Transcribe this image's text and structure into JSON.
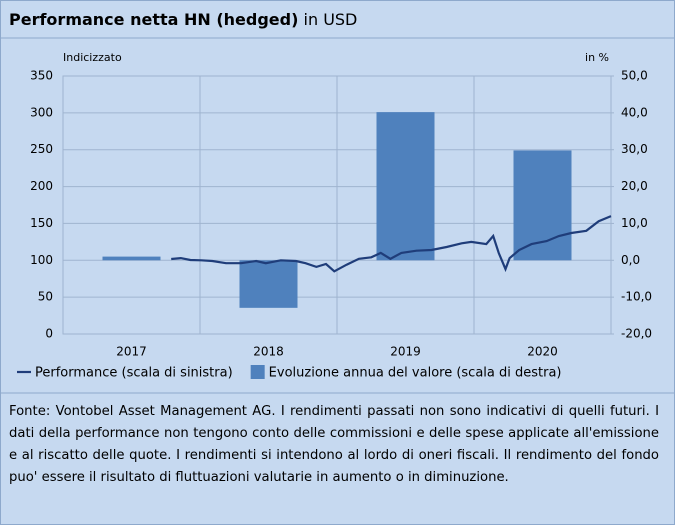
{
  "chart_data": {
    "type": "bar",
    "title": "Performance netta HN (hedged)",
    "subtitle": "in USD",
    "y_label": "Indicizzato",
    "y2_label": "in %",
    "categories": [
      "2017",
      "2018",
      "2019",
      "2020"
    ],
    "xlim": [
      2017,
      2021
    ],
    "ylim": [
      0,
      350
    ],
    "yticks": [
      0,
      50,
      100,
      150,
      200,
      250,
      300,
      350
    ],
    "y2lim": [
      -20,
      50
    ],
    "y2ticks": [
      {
        "value": -20,
        "label": "-20,0"
      },
      {
        "value": -10,
        "label": "-10,0"
      },
      {
        "value": 0,
        "label": "0,0"
      },
      {
        "value": 10,
        "label": "10,0"
      },
      {
        "value": 20,
        "label": "20,0"
      },
      {
        "value": 30,
        "label": "30,0"
      },
      {
        "value": 40,
        "label": "40,0"
      },
      {
        "value": 50,
        "label": "50,0"
      }
    ],
    "grid": true,
    "series": [
      {
        "name": "Performance (scala di sinistra)",
        "type": "line",
        "color": "#1f3d7a",
        "x": [
          2017.79,
          2017.86,
          2017.93,
          2018.01,
          2018.09,
          2018.19,
          2018.3,
          2018.41,
          2018.48,
          2018.59,
          2018.7,
          2018.77,
          2018.85,
          2018.92,
          2018.98,
          2019.07,
          2019.16,
          2019.25,
          2019.32,
          2019.39,
          2019.47,
          2019.58,
          2019.69,
          2019.8,
          2019.91,
          2019.98,
          2020.09,
          2020.14,
          2020.18,
          2020.23,
          2020.26,
          2020.33,
          2020.42,
          2020.53,
          2020.62,
          2020.71,
          2020.82,
          2020.91,
          2021.0
        ],
        "values": [
          101.7,
          103,
          100.4,
          100,
          99,
          96,
          96,
          99,
          96,
          100,
          99,
          96,
          91,
          95,
          85,
          94,
          102,
          104,
          110,
          102,
          110,
          113,
          114,
          118,
          123,
          125,
          122,
          133,
          110,
          88,
          103,
          114,
          122,
          126,
          133,
          137,
          140,
          153,
          160
        ]
      },
      {
        "name": "Evoluzione annua del valore (scala di destra)",
        "type": "bar",
        "axis": "y2",
        "color": "#4f81bd",
        "values": [
          1.0,
          -12.9,
          40.2,
          29.8
        ]
      }
    ],
    "footnote": "Fonte: Vontobel Asset Management AG. I rendimenti passati non sono indicativi di quelli futuri. I dati della performance non tengono conto delle commissioni e delle spese applicate all'emissione e al riscatto delle quote. I rendimenti si intendono al lordo di oneri fiscali. Il rendimento del fondo puo' essere il risultato di fluttuazioni valutarie in aumento o in diminuzione."
  }
}
